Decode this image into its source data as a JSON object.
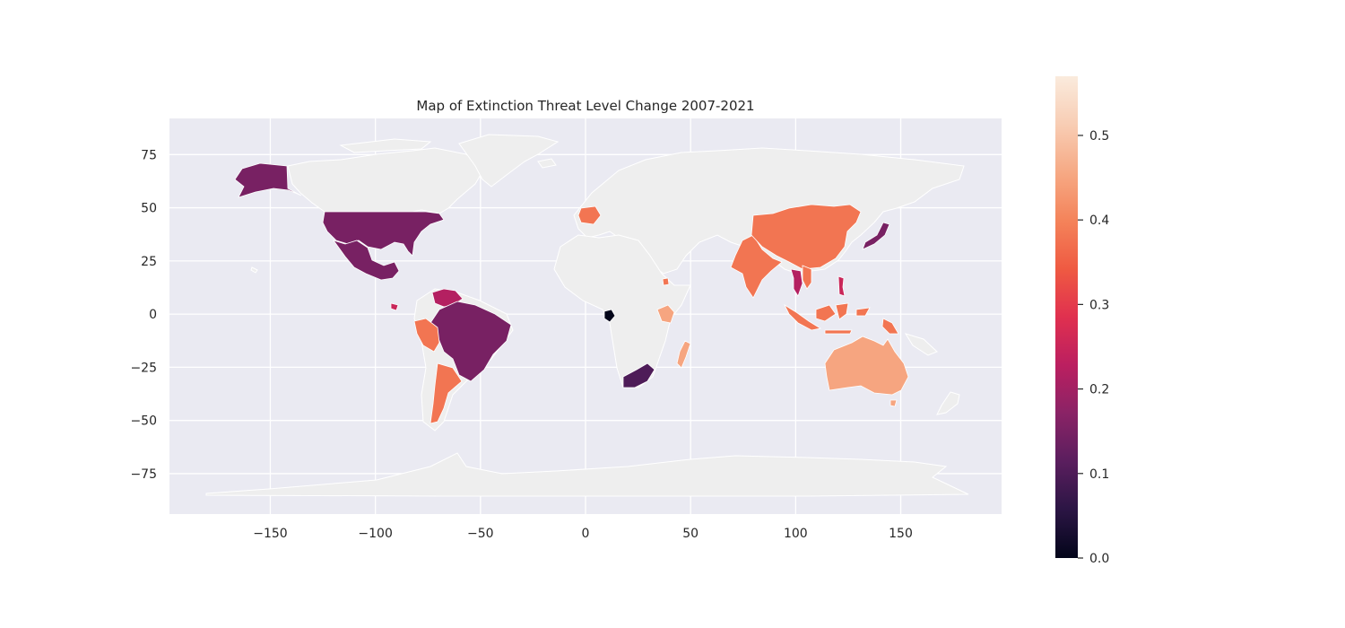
{
  "chart_data": {
    "type": "choropleth",
    "title": "Map of Extinction Threat Level Change 2007-2021",
    "xlabel": "",
    "ylabel": "",
    "xlim": [
      -198,
      198
    ],
    "ylim": [
      -94,
      92
    ],
    "x_ticks": [
      -150,
      -100,
      -50,
      0,
      50,
      100,
      150
    ],
    "x_tick_labels": [
      "−150",
      "−100",
      "−50",
      "0",
      "50",
      "100",
      "150"
    ],
    "y_ticks": [
      75,
      50,
      25,
      0,
      -25,
      -50,
      -75
    ],
    "y_tick_labels": [
      "75",
      "50",
      "25",
      "0",
      "−25",
      "−50",
      "−75"
    ],
    "grid": true,
    "background_color": "#eaeaf2",
    "no_data_color": "#eeeeee",
    "colormap": "rocket",
    "colorbar": {
      "range": [
        0.0,
        0.57
      ],
      "ticks": [
        0.0,
        0.1,
        0.2,
        0.3,
        0.4,
        0.5
      ],
      "tick_labels": [
        "0.0",
        "0.1",
        "0.2",
        "0.3",
        "0.4",
        "0.5"
      ],
      "placement": "right"
    },
    "regions": [
      {
        "country": "United States",
        "value": 0.15
      },
      {
        "country": "Mexico",
        "value": 0.15
      },
      {
        "country": "Brazil",
        "value": 0.15
      },
      {
        "country": "Venezuela",
        "value": 0.22
      },
      {
        "country": "Panama",
        "value": 0.25
      },
      {
        "country": "Peru",
        "value": 0.38
      },
      {
        "country": "Argentina",
        "value": 0.38
      },
      {
        "country": "France",
        "value": 0.38
      },
      {
        "country": "Gabon",
        "value": 0.0
      },
      {
        "country": "South Africa",
        "value": 0.1
      },
      {
        "country": "Kenya",
        "value": 0.45
      },
      {
        "country": "Madagascar",
        "value": 0.45
      },
      {
        "country": "Ethiopia",
        "value": 0.38
      },
      {
        "country": "India",
        "value": 0.38
      },
      {
        "country": "China",
        "value": 0.38
      },
      {
        "country": "Japan",
        "value": 0.15
      },
      {
        "country": "Thailand",
        "value": 0.22
      },
      {
        "country": "Vietnam",
        "value": 0.38
      },
      {
        "country": "Philippines",
        "value": 0.25
      },
      {
        "country": "Indonesia",
        "value": 0.38
      },
      {
        "country": "Papua New Guinea",
        "value": 0.38
      },
      {
        "country": "Australia",
        "value": 0.45
      }
    ]
  }
}
